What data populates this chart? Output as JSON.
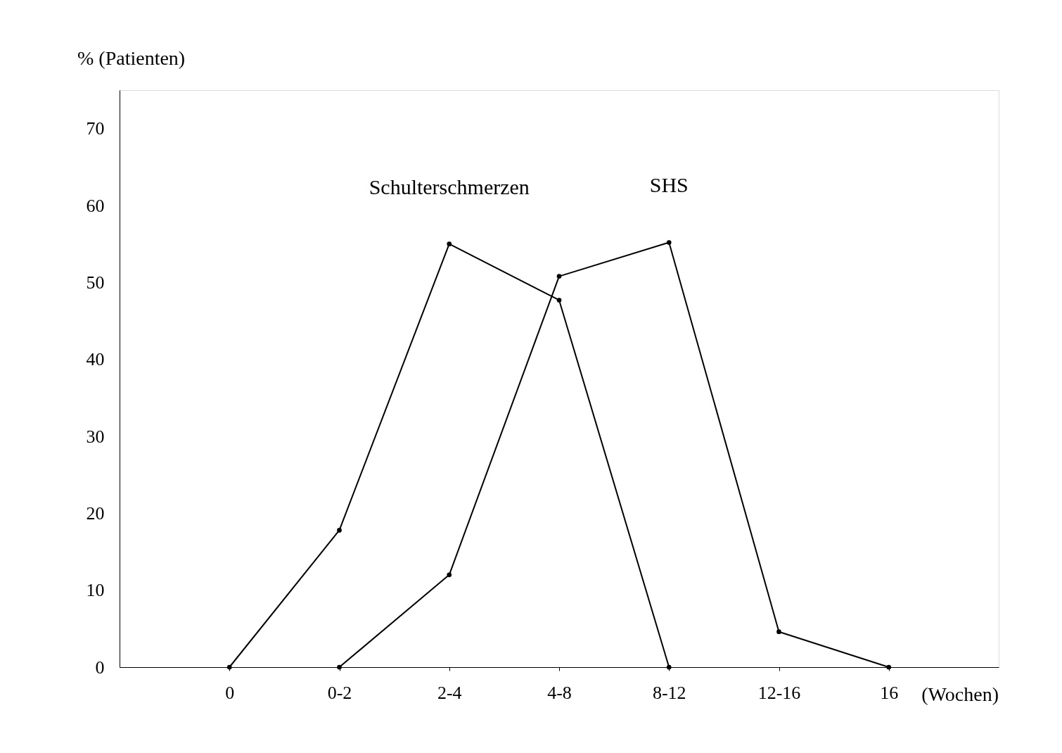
{
  "chart_data": {
    "type": "line",
    "ylabel": "% (Patienten)",
    "xlabel": "(Wochen)",
    "categories": [
      "0",
      "0-2",
      "2-4",
      "4-8",
      "8-12",
      "12-16",
      "16"
    ],
    "series": [
      {
        "name": "Schulterschmerzen",
        "color": "#000000",
        "values": [
          0,
          17.8,
          55,
          47.7,
          0,
          null,
          null
        ]
      },
      {
        "name": "SHS",
        "color": "#000000",
        "values": [
          null,
          0,
          12,
          50.8,
          55.2,
          4.6,
          0
        ]
      }
    ],
    "ylim": [
      0,
      75
    ],
    "yticks": [
      0,
      10,
      20,
      30,
      40,
      50,
      60,
      70
    ],
    "grid": false,
    "marker": "circle",
    "line_style": "solid"
  }
}
